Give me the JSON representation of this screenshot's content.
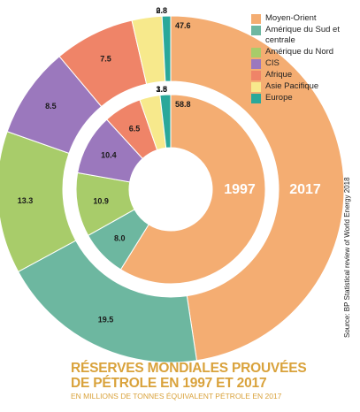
{
  "chart_data": {
    "type": "donut",
    "title_lines": [
      "RÉSERVES MONDIALES PROUVÉES",
      "DE PÉTROLE EN 1997 ET 2017"
    ],
    "subtitle": "EN MILLIONS DE TONNES ÉQUIVALENT PÉTROLE EN 2017",
    "source": "Source: BP Statistical review of World Energy 2018",
    "categories": [
      "Moyen-Orient",
      "Amérique du Sud et centrale",
      "Amérique du Nord",
      "CIS",
      "Afrique",
      "Asie Pacifique",
      "Europe"
    ],
    "colors": [
      "#f4ad72",
      "#6db7a0",
      "#a8cc6a",
      "#9b78bd",
      "#ef8468",
      "#f7e98c",
      "#2aa89a"
    ],
    "series": [
      {
        "name": "1997",
        "values": [
          58.8,
          8.0,
          10.9,
          10.4,
          6.5,
          3.5,
          1.8
        ]
      },
      {
        "name": "2017",
        "values": [
          47.6,
          19.5,
          13.3,
          8.5,
          7.5,
          2.8,
          0.8
        ]
      }
    ]
  }
}
